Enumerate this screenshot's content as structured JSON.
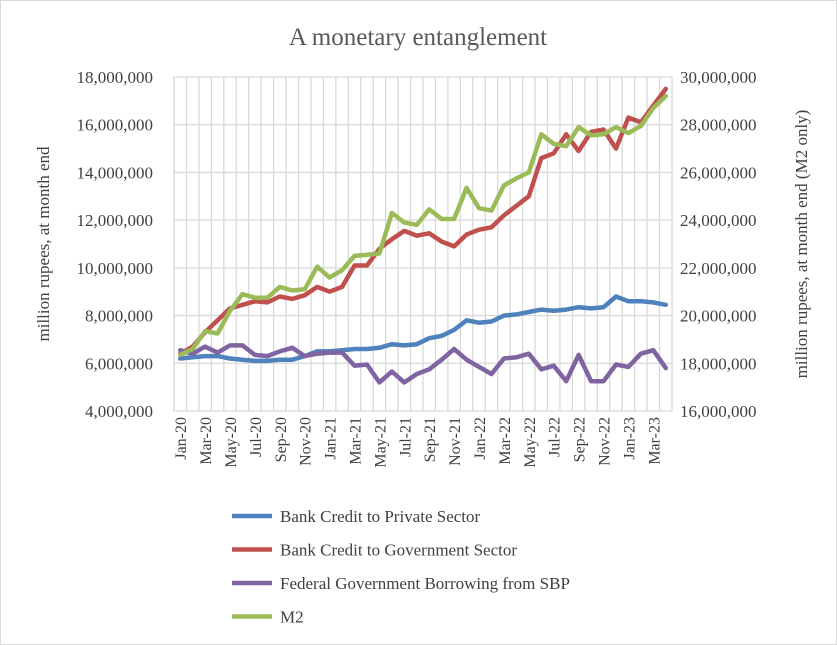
{
  "chart_data": {
    "type": "line",
    "title": "A monetary entanglement",
    "ylabel": "million rupees, at month end",
    "y2label": "million rupees, at month end (M2 only)",
    "ylim": [
      4000000,
      18000000
    ],
    "y2lim": [
      16000000,
      30000000
    ],
    "yticks": [
      4000000,
      6000000,
      8000000,
      10000000,
      12000000,
      14000000,
      16000000,
      18000000
    ],
    "y2ticks": [
      16000000,
      18000000,
      20000000,
      22000000,
      24000000,
      26000000,
      28000000,
      30000000
    ],
    "grid": true,
    "legend": "bottom",
    "categories": [
      "Jan-20",
      "Feb-20",
      "Mar-20",
      "Apr-20",
      "May-20",
      "Jun-20",
      "Jul-20",
      "Aug-20",
      "Sep-20",
      "Oct-20",
      "Nov-20",
      "Dec-20",
      "Jan-21",
      "Feb-21",
      "Mar-21",
      "Apr-21",
      "May-21",
      "Jun-21",
      "Jul-21",
      "Aug-21",
      "Sep-21",
      "Oct-21",
      "Nov-21",
      "Dec-21",
      "Jan-22",
      "Feb-22",
      "Mar-22",
      "Apr-22",
      "May-22",
      "Jun-22",
      "Jul-22",
      "Aug-22",
      "Sep-22",
      "Oct-22",
      "Nov-22",
      "Dec-22",
      "Jan-23",
      "Feb-23",
      "Mar-23",
      "Apr-23"
    ],
    "tick_label_every": 2,
    "series": [
      {
        "name": "Bank Credit to Private Sector",
        "color": "#4f81bd",
        "axis": "left",
        "values": [
          6200000,
          6250000,
          6300000,
          6300000,
          6200000,
          6150000,
          6100000,
          6100000,
          6150000,
          6150000,
          6300000,
          6500000,
          6500000,
          6550000,
          6600000,
          6600000,
          6650000,
          6800000,
          6750000,
          6800000,
          7050000,
          7150000,
          7400000,
          7800000,
          7700000,
          7750000,
          8000000,
          8050000,
          8150000,
          8250000,
          8200000,
          8250000,
          8350000,
          8300000,
          8350000,
          8800000,
          8600000,
          8600000,
          8550000,
          8450000
        ]
      },
      {
        "name": "Bank Credit to Government Sector",
        "color": "#c0504d",
        "axis": "left",
        "values": [
          6400000,
          6700000,
          7300000,
          7800000,
          8300000,
          8450000,
          8600000,
          8550000,
          8800000,
          8700000,
          8850000,
          9200000,
          9000000,
          9200000,
          10100000,
          10100000,
          10800000,
          11200000,
          11550000,
          11350000,
          11450000,
          11100000,
          10900000,
          11400000,
          11600000,
          11700000,
          12200000,
          12600000,
          13000000,
          14600000,
          14800000,
          15600000,
          14900000,
          15700000,
          15800000,
          15000000,
          16300000,
          16100000,
          16800000,
          17500000
        ]
      },
      {
        "name": "Federal Government Borrowing from SBP",
        "color": "#8064a2",
        "axis": "left",
        "values": [
          6550000,
          6400000,
          6700000,
          6450000,
          6750000,
          6750000,
          6350000,
          6300000,
          6500000,
          6650000,
          6300000,
          6400000,
          6450000,
          6450000,
          5900000,
          5950000,
          5200000,
          5650000,
          5200000,
          5550000,
          5750000,
          6150000,
          6600000,
          6150000,
          5850000,
          5550000,
          6200000,
          6250000,
          6400000,
          5750000,
          5900000,
          5250000,
          6350000,
          5250000,
          5250000,
          5950000,
          5850000,
          6400000,
          6550000,
          5800000
        ]
      },
      {
        "name": "M2",
        "color": "#9bbb59",
        "axis": "right",
        "values": [
          18350000,
          18600000,
          19350000,
          19250000,
          20200000,
          20900000,
          20750000,
          20750000,
          21200000,
          21050000,
          21100000,
          22050000,
          21600000,
          21900000,
          22500000,
          22550000,
          22600000,
          24300000,
          23900000,
          23800000,
          24450000,
          24050000,
          24050000,
          25350000,
          24500000,
          24400000,
          25450000,
          25750000,
          26000000,
          27600000,
          27200000,
          27100000,
          27900000,
          27550000,
          27600000,
          27900000,
          27650000,
          27950000,
          28700000,
          29200000
        ]
      }
    ]
  }
}
